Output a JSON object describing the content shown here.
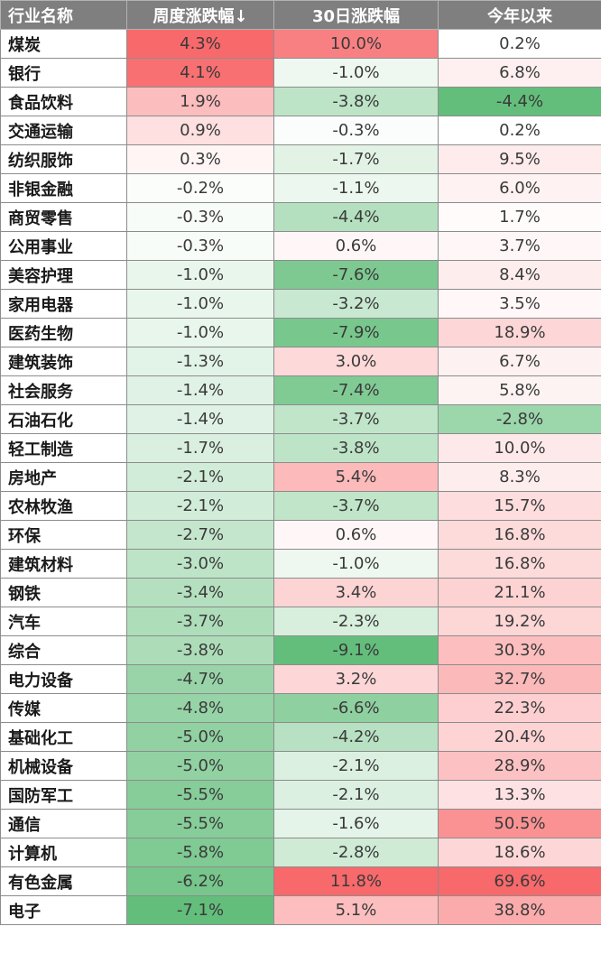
{
  "chart_data": {
    "type": "table",
    "columns": [
      "行业名称",
      "周度涨跌幅↓",
      "30日涨跌幅",
      "今年以来"
    ],
    "rows": [
      {
        "name": "煤炭",
        "values": [
          "4.3%",
          "10.0%",
          "0.2%"
        ]
      },
      {
        "name": "银行",
        "values": [
          "4.1%",
          "-1.0%",
          "6.8%"
        ]
      },
      {
        "name": "食品饮料",
        "values": [
          "1.9%",
          "-3.8%",
          "-4.4%"
        ]
      },
      {
        "name": "交通运输",
        "values": [
          "0.9%",
          "-0.3%",
          "0.2%"
        ]
      },
      {
        "name": "纺织服饰",
        "values": [
          "0.3%",
          "-1.7%",
          "9.5%"
        ]
      },
      {
        "name": "非银金融",
        "values": [
          "-0.2%",
          "-1.1%",
          "6.0%"
        ]
      },
      {
        "name": "商贸零售",
        "values": [
          "-0.3%",
          "-4.4%",
          "1.7%"
        ]
      },
      {
        "name": "公用事业",
        "values": [
          "-0.3%",
          "0.6%",
          "3.7%"
        ]
      },
      {
        "name": "美容护理",
        "values": [
          "-1.0%",
          "-7.6%",
          "8.4%"
        ]
      },
      {
        "name": "家用电器",
        "values": [
          "-1.0%",
          "-3.2%",
          "3.5%"
        ]
      },
      {
        "name": "医药生物",
        "values": [
          "-1.0%",
          "-7.9%",
          "18.9%"
        ]
      },
      {
        "name": "建筑装饰",
        "values": [
          "-1.3%",
          "3.0%",
          "6.7%"
        ]
      },
      {
        "name": "社会服务",
        "values": [
          "-1.4%",
          "-7.4%",
          "5.8%"
        ]
      },
      {
        "name": "石油石化",
        "values": [
          "-1.4%",
          "-3.7%",
          "-2.8%"
        ]
      },
      {
        "name": "轻工制造",
        "values": [
          "-1.7%",
          "-3.8%",
          "10.0%"
        ]
      },
      {
        "name": "房地产",
        "values": [
          "-2.1%",
          "5.4%",
          "8.3%"
        ]
      },
      {
        "name": "农林牧渔",
        "values": [
          "-2.1%",
          "-3.7%",
          "15.7%"
        ]
      },
      {
        "name": "环保",
        "values": [
          "-2.7%",
          "0.6%",
          "16.8%"
        ]
      },
      {
        "name": "建筑材料",
        "values": [
          "-3.0%",
          "-1.0%",
          "16.8%"
        ]
      },
      {
        "name": "钢铁",
        "values": [
          "-3.4%",
          "3.4%",
          "21.1%"
        ]
      },
      {
        "name": "汽车",
        "values": [
          "-3.7%",
          "-2.3%",
          "19.2%"
        ]
      },
      {
        "name": "综合",
        "values": [
          "-3.8%",
          "-9.1%",
          "30.3%"
        ]
      },
      {
        "name": "电力设备",
        "values": [
          "-4.7%",
          "3.2%",
          "32.7%"
        ]
      },
      {
        "name": "传媒",
        "values": [
          "-4.8%",
          "-6.6%",
          "22.3%"
        ]
      },
      {
        "name": "基础化工",
        "values": [
          "-5.0%",
          "-4.2%",
          "20.4%"
        ]
      },
      {
        "name": "机械设备",
        "values": [
          "-5.0%",
          "-2.1%",
          "28.9%"
        ]
      },
      {
        "name": "国防军工",
        "values": [
          "-5.5%",
          "-2.1%",
          "13.3%"
        ]
      },
      {
        "name": "通信",
        "values": [
          "-5.5%",
          "-1.6%",
          "50.5%"
        ]
      },
      {
        "name": "计算机",
        "values": [
          "-5.8%",
          "-2.8%",
          "18.6%"
        ]
      },
      {
        "name": "有色金属",
        "values": [
          "-6.2%",
          "11.8%",
          "69.6%"
        ]
      },
      {
        "name": "电子",
        "values": [
          "-7.1%",
          "5.1%",
          "38.8%"
        ]
      }
    ],
    "colors": {
      "positive": "#f8696b",
      "negative": "#63be7b",
      "neutral": "#ffffff",
      "header_bg": "#7f7f7f",
      "header_text": "#ffffff"
    }
  }
}
